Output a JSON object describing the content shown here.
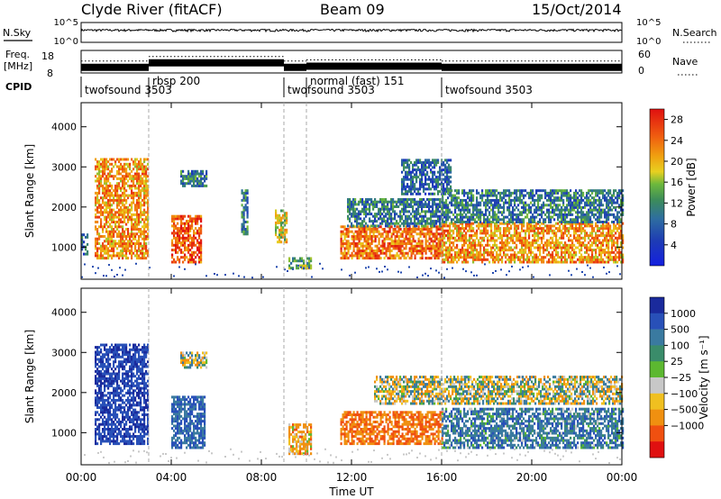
{
  "header": {
    "station": "Clyde River (fitACF)",
    "beam": "Beam 09",
    "date": "15/Oct/2014"
  },
  "strip": {
    "nsky_label": "N.Sky",
    "nsky_ticks": [
      "10^5",
      "10^0"
    ],
    "nsearch_label": "N.Search",
    "nsearch_ticks": [
      "10^5",
      "10^0"
    ],
    "freq_label_1": "Freq.",
    "freq_label_2": "[MHz]",
    "freq_ticks": [
      "18",
      "8"
    ],
    "nave_label": "Nave",
    "nave_ticks": [
      "60",
      "0"
    ],
    "cpid_label": "CPID",
    "cpid_segments": [
      {
        "label": "twofsound 3503",
        "start": 0,
        "end": 3.0
      },
      {
        "label": "rbsp 200",
        "start": 3.0,
        "end": 9.0
      },
      {
        "label": "twofsound 3503",
        "start": 9.0,
        "end": 10.0
      },
      {
        "label": "normal (fast) 151",
        "start": 10.0,
        "end": 16.0
      },
      {
        "label": "twofsound 3503",
        "start": 16.0,
        "end": 24.0
      }
    ]
  },
  "panels": {
    "power": {
      "ylabel": "Slant Range [km]",
      "cb_label": "Power [dB]",
      "cb_ticks": [
        "28",
        "24",
        "20",
        "16",
        "12",
        "8",
        "4"
      ],
      "colors": {
        "low": "#1e2fd8",
        "mid": "#3c8c50",
        "mid_high": "#e8c018",
        "high": "#e01010"
      }
    },
    "velocity": {
      "ylabel": "Slant Range [km]",
      "cb_label": "Velocity [m s⁻¹]",
      "cb_ticks": [
        "1000",
        "500",
        "100",
        "25",
        "−25",
        "−100",
        "−500",
        "−1000"
      ],
      "colors": {
        "away": "#2040c0",
        "toward": "#e02010",
        "ground": "#c0c0c0"
      }
    },
    "y_ticks": [
      "1000",
      "2000",
      "3000",
      "4000"
    ]
  },
  "x_axis": {
    "label": "Time UT",
    "ticks": [
      "00:00",
      "04:00",
      "08:00",
      "12:00",
      "16:00",
      "20:00",
      "00:00"
    ]
  },
  "chart_data": [
    {
      "type": "line",
      "title": "Clyde River (fitACF)  Beam 09  15/Oct/2014",
      "panel": "N.Sky / N.Search / Freq / Nave time series",
      "xlabel": "Time UT",
      "xlim": [
        0,
        24
      ],
      "series": [
        {
          "name": "N.Sky",
          "scale": "log",
          "ylim": [
            1,
            100000
          ],
          "typical_value": 1000
        },
        {
          "name": "Freq.",
          "ylim": [
            8,
            18
          ],
          "values_by_segment": [
            {
              "start": 0,
              "end": 3.0,
              "value": 10.5
            },
            {
              "start": 3.0,
              "end": 9.0,
              "value": 12.5
            },
            {
              "start": 9.0,
              "end": 10.0,
              "value": 10.5
            },
            {
              "start": 10.0,
              "end": 16.0,
              "value": 11.0
            },
            {
              "start": 16.0,
              "end": 24.0,
              "value": 10.5
            }
          ]
        }
      ]
    },
    {
      "type": "heatmap",
      "title": "Power",
      "xlabel": "Time UT",
      "ylabel": "Slant Range [km]",
      "xlim": [
        0,
        24
      ],
      "ylim": [
        200,
        4600
      ],
      "color_scale": {
        "label": "Power [dB]",
        "range": [
          0,
          30
        ],
        "ticks": [
          4,
          8,
          12,
          16,
          20,
          24,
          28
        ]
      },
      "regions": [
        {
          "t0": 0.0,
          "t1": 0.25,
          "r0": 800,
          "r1": 1300,
          "value": 8
        },
        {
          "t0": 0.6,
          "t1": 3.0,
          "r0": 700,
          "r1": 3200,
          "value": 22
        },
        {
          "t0": 4.0,
          "t1": 5.3,
          "r0": 600,
          "r1": 1800,
          "value": 26
        },
        {
          "t0": 4.4,
          "t1": 5.6,
          "r0": 2500,
          "r1": 2900,
          "value": 10
        },
        {
          "t0": 7.1,
          "t1": 7.4,
          "r0": 1300,
          "r1": 2400,
          "value": 10
        },
        {
          "t0": 8.6,
          "t1": 9.1,
          "r0": 1100,
          "r1": 1900,
          "value": 18
        },
        {
          "t0": 9.2,
          "t1": 10.2,
          "r0": 450,
          "r1": 700,
          "value": 14
        },
        {
          "t0": 11.5,
          "t1": 16.0,
          "r0": 700,
          "r1": 1500,
          "value": 24
        },
        {
          "t0": 11.8,
          "t1": 16.0,
          "r0": 1500,
          "r1": 2200,
          "value": 10
        },
        {
          "t0": 14.2,
          "t1": 16.4,
          "r0": 2300,
          "r1": 3200,
          "value": 8
        },
        {
          "t0": 16.0,
          "t1": 24.0,
          "r0": 600,
          "r1": 1600,
          "value": 22
        },
        {
          "t0": 16.0,
          "t1": 24.0,
          "r0": 1600,
          "r1": 2400,
          "value": 10
        }
      ]
    },
    {
      "type": "heatmap",
      "title": "Velocity",
      "xlabel": "Time UT",
      "ylabel": "Slant Range [km]",
      "xlim": [
        0,
        24
      ],
      "ylim": [
        200,
        4600
      ],
      "color_scale": {
        "label": "Velocity [m s⁻¹]",
        "range": [
          -1000,
          1000
        ],
        "ticks": [
          1000,
          500,
          100,
          25,
          -25,
          -100,
          -500,
          -1000
        ]
      },
      "regions": [
        {
          "t0": 0.6,
          "t1": 3.0,
          "r0": 700,
          "r1": 3200,
          "value": 700
        },
        {
          "t0": 4.0,
          "t1": 5.5,
          "r0": 600,
          "r1": 1900,
          "value": 300
        },
        {
          "t0": 4.4,
          "t1": 5.6,
          "r0": 2600,
          "r1": 3000,
          "value": 0
        },
        {
          "t0": 9.2,
          "t1": 10.2,
          "r0": 450,
          "r1": 1200,
          "value": -150
        },
        {
          "t0": 11.5,
          "t1": 16.0,
          "r0": 700,
          "r1": 1500,
          "value": -300
        },
        {
          "t0": 13.0,
          "t1": 24.0,
          "r0": 1700,
          "r1": 2400,
          "value": 0
        },
        {
          "t0": 16.0,
          "t1": 24.0,
          "r0": 600,
          "r1": 1600,
          "value": 200
        }
      ]
    }
  ]
}
